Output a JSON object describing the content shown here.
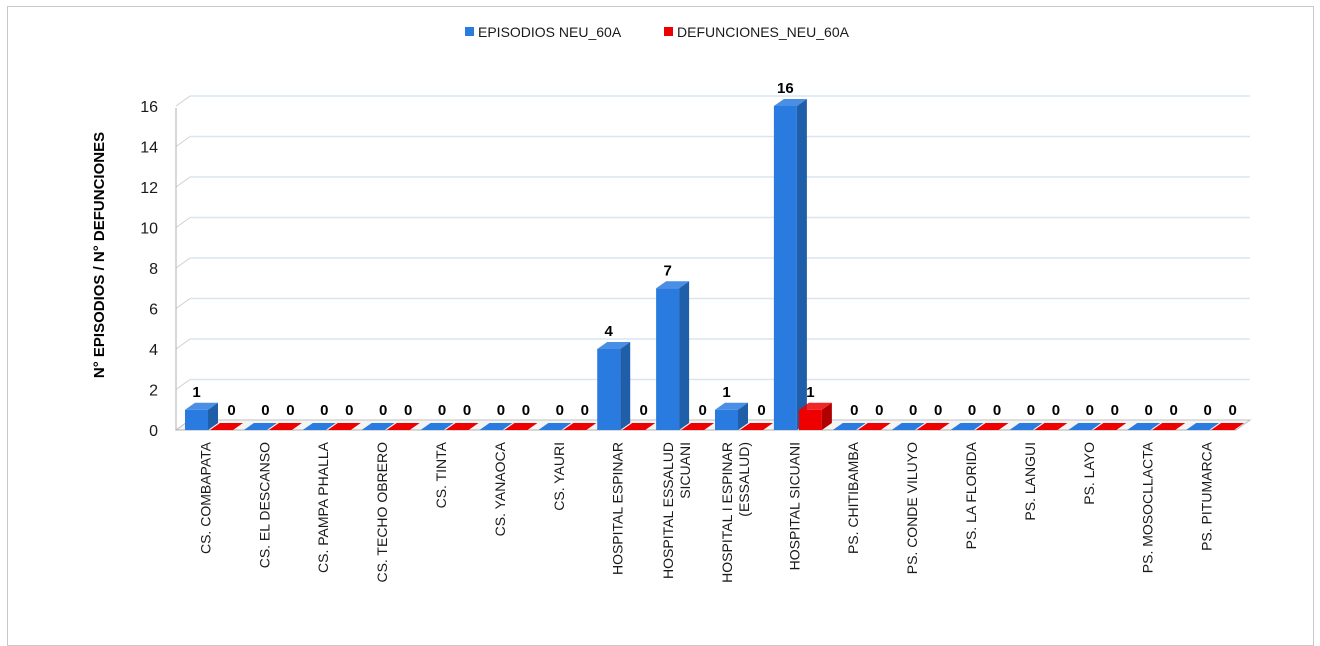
{
  "chart_data": {
    "type": "bar",
    "ylabel": "N° EPISODIOS / N° DEFUNCIONES",
    "ylim": [
      0,
      16
    ],
    "yticks": [
      "0",
      "2",
      "4",
      "6",
      "8",
      "10",
      "12",
      "14",
      "16"
    ],
    "grid": true,
    "legend_position": "top",
    "categories": [
      [
        "CS. COMBAPATA"
      ],
      [
        "CS. EL DESCANSO"
      ],
      [
        "CS. PAMPA PHALLA"
      ],
      [
        "CS. TECHO OBRERO"
      ],
      [
        "CS. TINTA"
      ],
      [
        "CS. YANAOCA"
      ],
      [
        "CS. YAURI"
      ],
      [
        "HOSPITAL ESPINAR"
      ],
      [
        "HOSPITAL ESSALUD",
        "SICUANI"
      ],
      [
        "HOSPITAL I ESPINAR",
        "(ESSALUD)"
      ],
      [
        "HOSPITAL SICUANI"
      ],
      [
        "PS. CHITIBAMBA"
      ],
      [
        "PS. CONDE VILUYO"
      ],
      [
        "PS. LA FLORIDA"
      ],
      [
        "PS. LANGUI"
      ],
      [
        "PS. LAYO"
      ],
      [
        "PS. MOSOCLLACTA"
      ],
      [
        "PS. PITUMARCA"
      ]
    ],
    "series": [
      {
        "name": "EPISODIOS NEU_60A",
        "color": "#2a7be0",
        "side_color": "#1f5ea8",
        "values": [
          1,
          0,
          0,
          0,
          0,
          0,
          0,
          4,
          7,
          1,
          16,
          0,
          0,
          0,
          0,
          0,
          0,
          0
        ]
      },
      {
        "name": "DEFUNCIONES_NEU_60A",
        "color": "#ee0000",
        "side_color": "#b00000",
        "values": [
          0,
          0,
          0,
          0,
          0,
          0,
          0,
          0,
          0,
          0,
          1,
          0,
          0,
          0,
          0,
          0,
          0,
          0
        ]
      }
    ]
  }
}
